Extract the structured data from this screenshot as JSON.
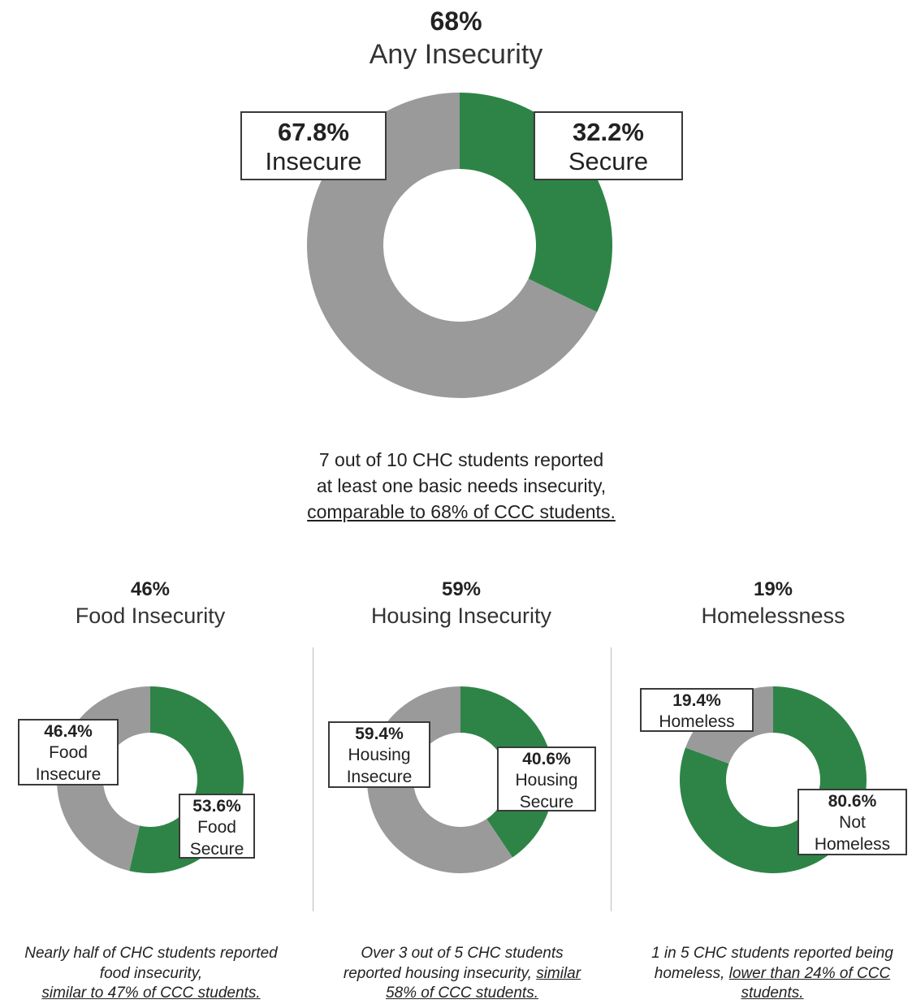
{
  "main": {
    "pct": "68%",
    "title": "Any Insecurity",
    "note_line1": "7 out of 10 CHC students reported",
    "note_line2": "at least one basic needs insecurity,",
    "note_line3": "comparable to 68% of CCC students."
  },
  "food": {
    "pct": "46%",
    "title": "Food Insecurity",
    "note_line1": "Nearly half of CHC students reported",
    "note_line2": "food insecurity,",
    "note_line3": "similar to 47% of CCC students."
  },
  "housing": {
    "pct": "59%",
    "title": "Housing Insecurity",
    "note_line1": "Over 3 out of 5 CHC students",
    "note_line2a": "reported housing insecurity,",
    "note_line2b": "similar",
    "note_line3": "58% of CCC students."
  },
  "homeless": {
    "pct": "19%",
    "title": "Homelessness",
    "note_line1": "1 in 5 CHC students reported being",
    "note_line2a": "homeless,",
    "note_line2b": "lower than 24% of CCC",
    "note_line3": "students."
  },
  "colors": {
    "insecure": "#9a9a9a",
    "secure": "#2e8446"
  },
  "chart_data": [
    {
      "type": "pie",
      "title": "Any Insecurity",
      "series": [
        {
          "name": "Insecure",
          "value": 67.8,
          "label_pct": "67.8%",
          "label_text": "Insecure"
        },
        {
          "name": "Secure",
          "value": 32.2,
          "label_pct": "32.2%",
          "label_text": "Secure"
        }
      ]
    },
    {
      "type": "pie",
      "title": "Food Insecurity",
      "series": [
        {
          "name": "Food Insecure",
          "value": 46.4,
          "label_pct": "46.4%",
          "label_l1": "Food",
          "label_l2": "Insecure"
        },
        {
          "name": "Food Secure",
          "value": 53.6,
          "label_pct": "53.6%",
          "label_l1": "Food",
          "label_l2": "Secure"
        }
      ]
    },
    {
      "type": "pie",
      "title": "Housing Insecurity",
      "series": [
        {
          "name": "Housing Insecure",
          "value": 59.4,
          "label_pct": "59.4%",
          "label_l1": "Housing",
          "label_l2": "Insecure"
        },
        {
          "name": "Housing Secure",
          "value": 40.6,
          "label_pct": "40.6%",
          "label_l1": "Housing",
          "label_l2": "Secure"
        }
      ]
    },
    {
      "type": "pie",
      "title": "Homelessness",
      "series": [
        {
          "name": "Homeless",
          "value": 19.4,
          "label_pct": "19.4%",
          "label_l1": "Homeless"
        },
        {
          "name": "Not Homeless",
          "value": 80.6,
          "label_pct": "80.6%",
          "label_l1": "Not",
          "label_l2": "Homeless"
        }
      ]
    }
  ]
}
